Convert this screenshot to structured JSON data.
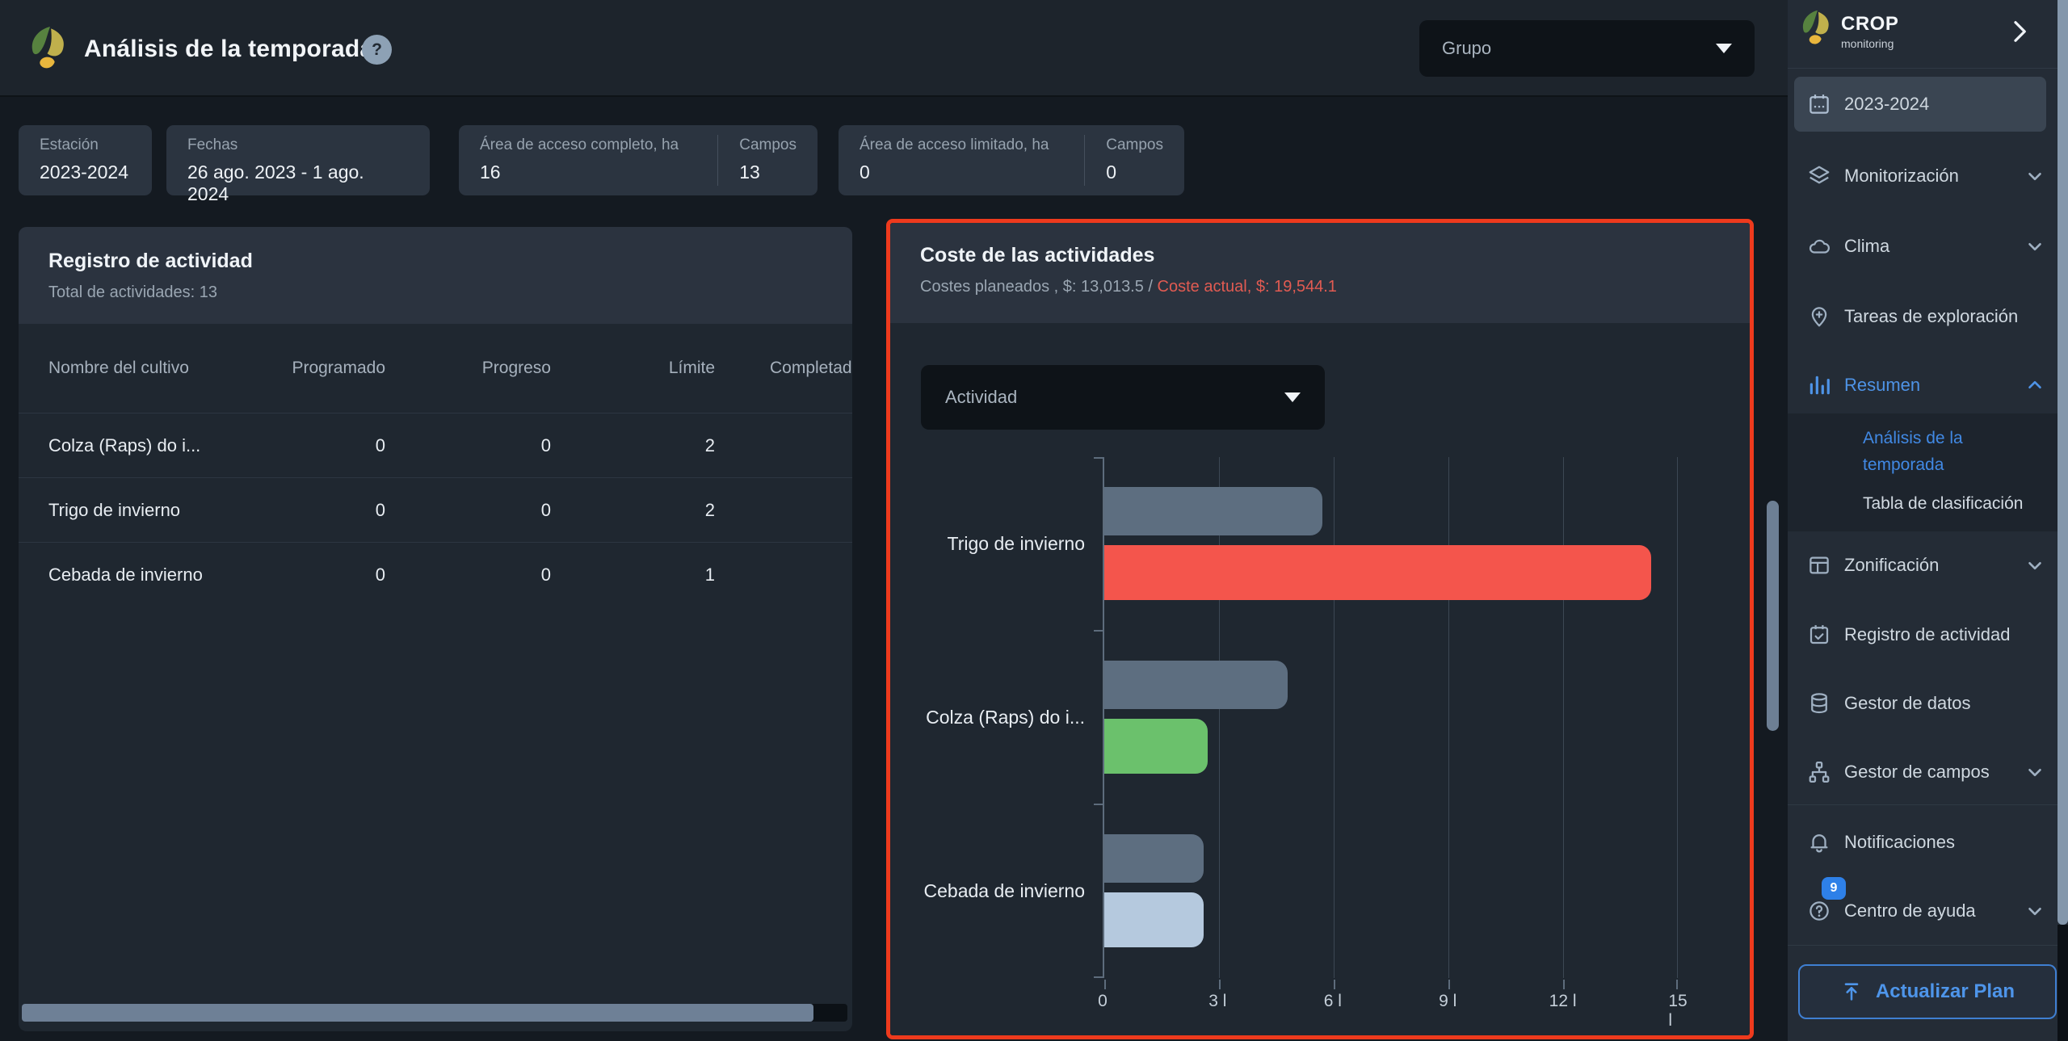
{
  "app": {
    "title": "Análisis de la temporada",
    "help_glyph": "?",
    "group_filter": "Grupo"
  },
  "filters": {
    "season": {
      "label": "Estación",
      "value": "2023-2024"
    },
    "dates": {
      "label": "Fechas",
      "value": "26 ago. 2023 - 1 ago. 2024"
    },
    "full_access": {
      "area_label": "Área de acceso completo, ha",
      "area_value": "16",
      "fields_label": "Campos",
      "fields_value": "13"
    },
    "limited_access": {
      "area_label": "Área de acceso limitado, ha",
      "area_value": "0",
      "fields_label": "Campos",
      "fields_value": "0"
    }
  },
  "activity_log": {
    "title": "Registro de actividad",
    "subtitle": "Total de actividades: 13",
    "columns": [
      "Nombre del cultivo",
      "Programado",
      "Progreso",
      "Límite",
      "Completad"
    ],
    "rows": [
      {
        "name": "Colza (Raps) do i...",
        "scheduled": "0",
        "progress": "0",
        "limit": "2",
        "completed": ""
      },
      {
        "name": "Trigo de invierno",
        "scheduled": "0",
        "progress": "0",
        "limit": "2",
        "completed": ""
      },
      {
        "name": "Cebada de invierno",
        "scheduled": "0",
        "progress": "0",
        "limit": "1",
        "completed": ""
      }
    ]
  },
  "cost_panel": {
    "title": "Coste de las actividades",
    "planned_label": "Costes planeados , $: 13,013.5 / ",
    "actual_label": "Coste actual, $: 19,544.1",
    "activity_dropdown": "Actividad"
  },
  "chart_data": {
    "type": "bar",
    "orientation": "horizontal",
    "title": "Coste de las actividades",
    "categories": [
      "Trigo de invierno",
      "Colza (Raps) do i...",
      "Cebada de invierno"
    ],
    "series": [
      {
        "name": "Costes planeados",
        "values": [
          5700,
          4800,
          2600
        ],
        "colors": [
          "#5d6e80",
          "#5d6e80",
          "#5d6e80"
        ]
      },
      {
        "name": "Coste actual",
        "values": [
          14300,
          2700,
          2600
        ],
        "colors": [
          "#f4554c",
          "#6bc16c",
          "#b5c9de"
        ]
      }
    ],
    "xlim": [
      0,
      15000
    ],
    "x_ticks": [
      "0",
      "3 l",
      "6 l",
      "9 l",
      "12 l",
      "15 l"
    ],
    "grid": true,
    "planned_total_usd": "13,013.5",
    "actual_total_usd": "19,544.1"
  },
  "sidebar": {
    "brand": {
      "name": "CROP",
      "tagline": "monitoring"
    },
    "season": "2023-2024",
    "monitoring": "Monitorización",
    "climate": "Clima",
    "scouting": "Tareas de exploración",
    "summary": "Resumen",
    "summary_sub": {
      "season_analysis": "Análisis de la temporada",
      "leaderboard": "Tabla de clasificación"
    },
    "zoning": "Zonificación",
    "activity_log": "Registro de actividad",
    "data_manager": "Gestor de datos",
    "field_manager": "Gestor de campos",
    "notifications": "Notificaciones",
    "help_center": "Centro de ayuda",
    "help_badge": "9",
    "upgrade": "Actualizar Plan"
  },
  "colors": {
    "accent_blue": "#4e93e6",
    "highlight_red_border": "#ee3a1d",
    "subtitle_red": "#e15b52",
    "planned_bar": "#5d6e80",
    "actual_bar_wheat": "#f4554c",
    "actual_bar_rape": "#6bc16c",
    "actual_bar_barley": "#b5c9de"
  }
}
